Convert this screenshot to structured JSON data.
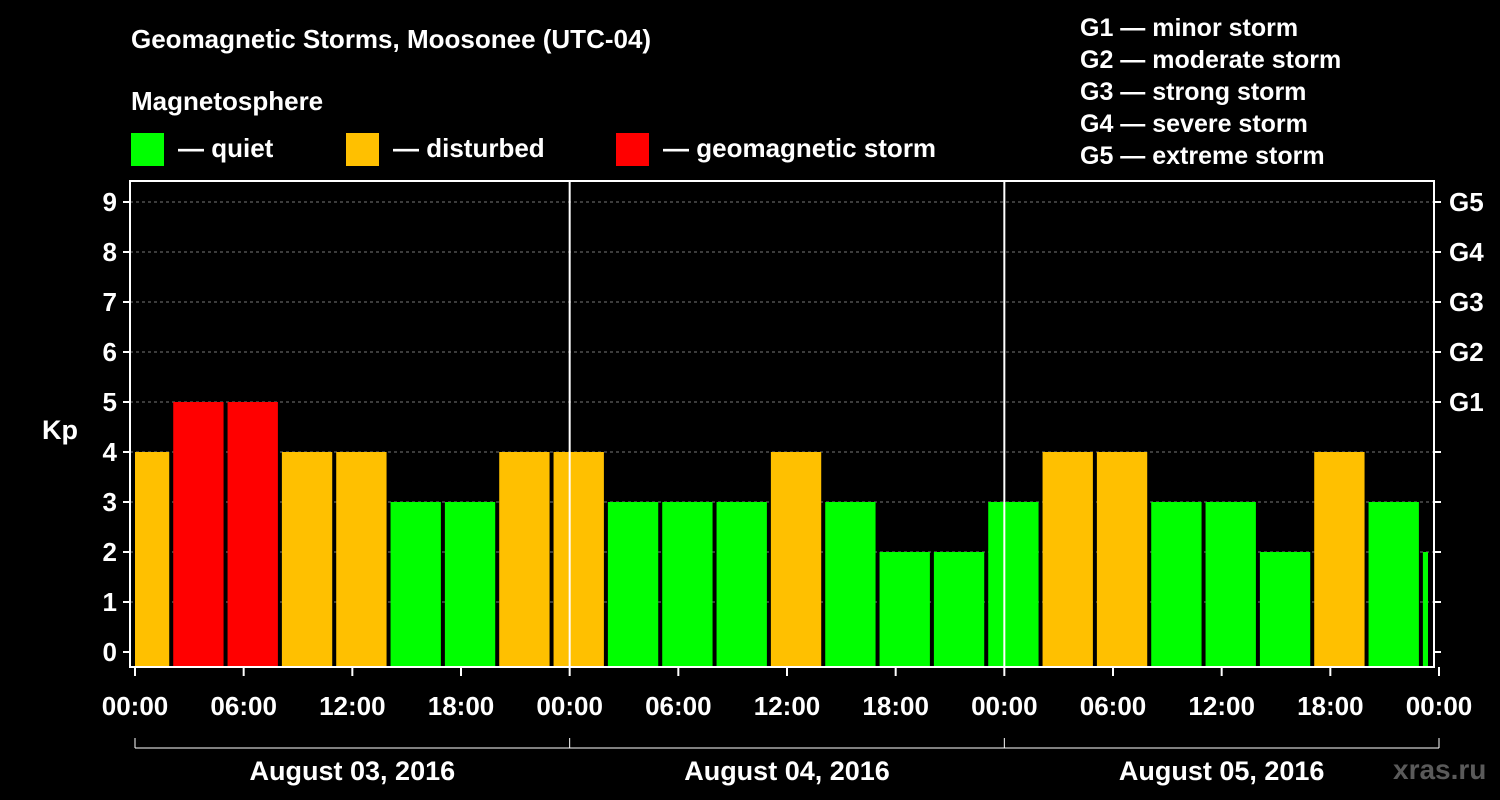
{
  "title": "Geomagnetic Storms, Moosonee (UTC-04)",
  "magnetosphere_label": "Magnetosphere",
  "legend": [
    {
      "name": "quiet",
      "label": "— quiet",
      "color": "#00ff00"
    },
    {
      "name": "disturbed",
      "label": "— disturbed",
      "color": "#ffc000"
    },
    {
      "name": "storm",
      "label": "— geomagnetic storm",
      "color": "#ff0000"
    }
  ],
  "g_scale": [
    "G1 — minor storm",
    "G2 — moderate storm",
    "G3 — strong storm",
    "G4 — severe storm",
    "G5 — extreme storm"
  ],
  "watermark": "xras.ru",
  "chart_data": {
    "type": "bar",
    "title": "Geomagnetic Storms, Moosonee (UTC-04)",
    "ylabel": "Kp",
    "ylim": [
      0,
      9
    ],
    "y_ticks": [
      "0",
      "1",
      "2",
      "3",
      "4",
      "5",
      "6",
      "7",
      "8",
      "9"
    ],
    "right_ticks": [
      {
        "kp": 5,
        "label": "G1"
      },
      {
        "kp": 6,
        "label": "G2"
      },
      {
        "kp": 7,
        "label": "G3"
      },
      {
        "kp": 8,
        "label": "G4"
      },
      {
        "kp": 9,
        "label": "G5"
      }
    ],
    "x_ticks": [
      "00:00",
      "06:00",
      "12:00",
      "18:00",
      "00:00",
      "06:00",
      "12:00",
      "18:00",
      "00:00",
      "06:00",
      "12:00",
      "18:00",
      "00:00"
    ],
    "days": [
      "August 03, 2016",
      "August 04, 2016",
      "August 05, 2016"
    ],
    "interval_hours": 3,
    "start_offset_hours": -1,
    "colors": {
      "quiet": "#00ff00",
      "disturbed": "#ffc000",
      "storm": "#ff0000"
    },
    "values": [
      4,
      5,
      5,
      4,
      4,
      3,
      3,
      4,
      4,
      3,
      3,
      3,
      4,
      3,
      2,
      2,
      3,
      4,
      4,
      3,
      3,
      2,
      4,
      3,
      2
    ],
    "grid": true
  }
}
